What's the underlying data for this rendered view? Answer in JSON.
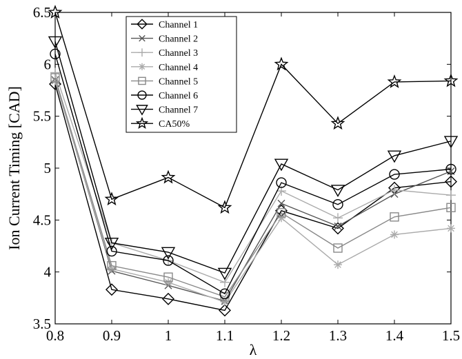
{
  "chart_data": {
    "type": "line",
    "title": "",
    "xlabel": "λ",
    "ylabel": "Ion Current Timing [CAD]",
    "x": [
      0.8,
      0.9,
      1.0,
      1.1,
      1.2,
      1.3,
      1.4,
      1.5
    ],
    "x_tick_labels": [
      "0.8",
      "0.9",
      "1",
      "1.1",
      "1.2",
      "1.3",
      "1.4",
      "1.5"
    ],
    "y_tick_labels": [
      "3.5",
      "4",
      "4.5",
      "5",
      "5.5",
      "6",
      "6.5"
    ],
    "y_ticks": [
      3.5,
      4,
      4.5,
      5,
      5.5,
      6,
      6.5
    ],
    "xlim": [
      0.8,
      1.5
    ],
    "ylim": [
      3.5,
      6.5
    ],
    "grid": false,
    "legend_position": "top-left",
    "series": [
      {
        "name": "Channel 1",
        "marker": "diamond",
        "color": "#000000",
        "values": [
          5.81,
          3.83,
          3.74,
          3.63,
          4.59,
          4.42,
          4.81,
          4.87
        ]
      },
      {
        "name": "Channel 2",
        "marker": "x",
        "color": "#555555",
        "values": [
          5.85,
          4.01,
          3.87,
          3.72,
          4.66,
          4.44,
          4.75,
          4.97
        ]
      },
      {
        "name": "Channel 3",
        "marker": "plus",
        "color": "#aaaaaa",
        "values": [
          5.92,
          4.28,
          4.11,
          3.9,
          4.78,
          4.52,
          4.79,
          4.74
        ]
      },
      {
        "name": "Channel 4",
        "marker": "asterisk",
        "color": "#aaaaaa",
        "values": [
          5.84,
          4.03,
          3.9,
          3.71,
          4.52,
          4.07,
          4.36,
          4.42
        ]
      },
      {
        "name": "Channel 5",
        "marker": "square",
        "color": "#888888",
        "values": [
          5.87,
          4.06,
          3.95,
          3.76,
          4.57,
          4.23,
          4.53,
          4.62
        ]
      },
      {
        "name": "Channel 6",
        "marker": "circle",
        "color": "#000000",
        "values": [
          6.1,
          4.2,
          4.11,
          3.79,
          4.86,
          4.65,
          4.94,
          4.99
        ]
      },
      {
        "name": "Channel 7",
        "marker": "triangle-down",
        "color": "#000000",
        "values": [
          6.22,
          4.28,
          4.19,
          3.99,
          5.04,
          4.79,
          5.12,
          5.26
        ]
      },
      {
        "name": "CA50%",
        "marker": "star",
        "color": "#000000",
        "values": [
          6.5,
          4.7,
          4.91,
          4.62,
          6.0,
          5.43,
          5.83,
          5.84
        ]
      }
    ]
  }
}
